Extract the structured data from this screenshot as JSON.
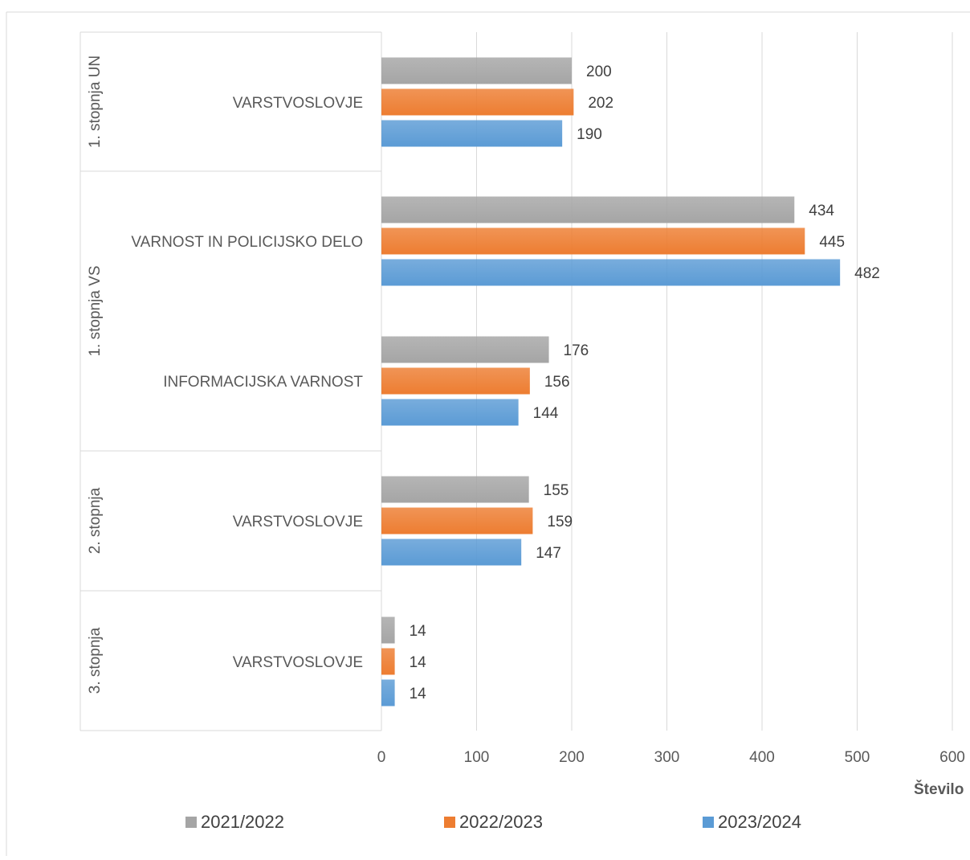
{
  "chart_data": {
    "type": "bar",
    "orientation": "horizontal",
    "groups": [
      {
        "name": "1. stopnja UN",
        "categories": [
          "VARSTVOSLOVJE"
        ]
      },
      {
        "name": "1. stopnja VS",
        "categories": [
          "VARNOST IN POLICIJSKO DELO",
          "INFORMACIJSKA VARNOST"
        ]
      },
      {
        "name": "2. stopnja",
        "categories": [
          "VARSTVOSLOVJE"
        ]
      },
      {
        "name": "3. stopnja",
        "categories": [
          "VARSTVOSLOVJE"
        ]
      }
    ],
    "categories": [
      "VARSTVOSLOVJE",
      "VARNOST IN POLICIJSKO DELO",
      "INFORMACIJSKA VARNOST",
      "VARSTVOSLOVJE",
      "VARSTVOSLOVJE"
    ],
    "series": [
      {
        "name": "2021/2022",
        "color": "#A5A5A5",
        "values": [
          200,
          434,
          176,
          155,
          14
        ]
      },
      {
        "name": "2022/2023",
        "color": "#ED7D31",
        "values": [
          202,
          445,
          156,
          159,
          14
        ]
      },
      {
        "name": "2023/2024",
        "color": "#5B9BD5",
        "values": [
          190,
          482,
          144,
          147,
          14
        ]
      }
    ],
    "xlabel": "Število",
    "xlim": [
      0,
      600
    ],
    "xticks": [
      0,
      100,
      200,
      300,
      400,
      500,
      600
    ],
    "grid": true,
    "legend": "bottom"
  }
}
